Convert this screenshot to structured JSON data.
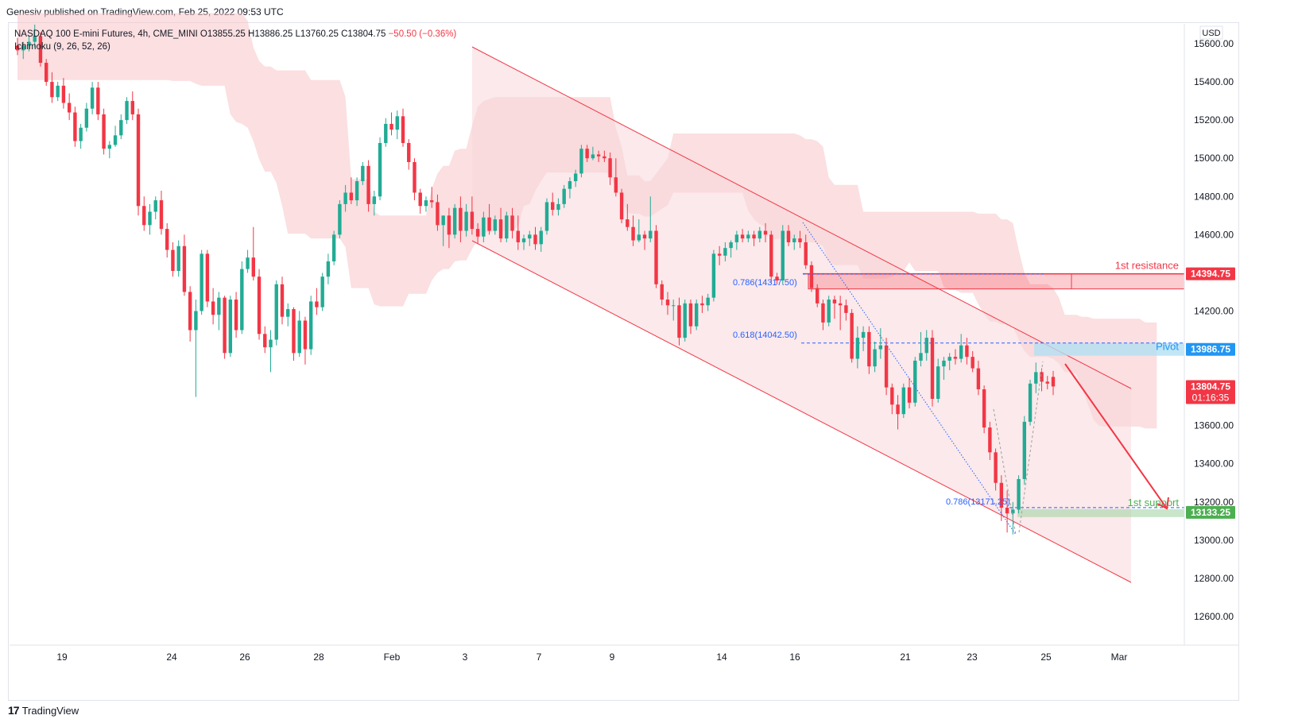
{
  "header": {
    "publisher_line": "Genesiv published on TradingView.com, Feb 25, 2022 09:53 UTC"
  },
  "legend": {
    "symbol": "NASDAQ 100 E-mini Futures, 4h, CME_MINI",
    "open": "O13855.25",
    "high": "H13886.25",
    "low": "L13760.25",
    "close": "C13804.75",
    "change": "−50.50 (−0.36%)",
    "indicator": "Ichimoku (9, 26, 52, 26)"
  },
  "footer": {
    "logo_glyph": "17",
    "brand": "TradingView"
  },
  "colors": {
    "up": "#22ab94",
    "down": "#f23645",
    "cloud": "#f7c5c8",
    "channel": "#f23645",
    "fib": "#2962ff",
    "pivot": "#2196f3",
    "support": "#4caf50"
  },
  "chart_data": {
    "type": "candlestick",
    "currency": "USD",
    "ylim": [
      12400,
      15750
    ],
    "y_ticks": [
      12600,
      12800,
      13000,
      13200,
      13400,
      13600,
      13800,
      14000,
      14200,
      14400,
      14600,
      14800,
      15000,
      15200,
      15400,
      15600
    ],
    "x_ticks": [
      "19",
      "24",
      "26",
      "28",
      "Feb",
      "3",
      "7",
      "9",
      "14",
      "16",
      "21",
      "23",
      "25",
      "Mar"
    ],
    "candles": [
      [
        15590,
        15630,
        15540,
        15565
      ],
      [
        15565,
        15610,
        15520,
        15590
      ],
      [
        15590,
        15640,
        15560,
        15610
      ],
      [
        15610,
        15700,
        15580,
        15640
      ],
      [
        15640,
        15660,
        15480,
        15500
      ],
      [
        15500,
        15520,
        15380,
        15400
      ],
      [
        15400,
        15450,
        15290,
        15320
      ],
      [
        15320,
        15400,
        15300,
        15380
      ],
      [
        15380,
        15420,
        15260,
        15290
      ],
      [
        15290,
        15340,
        15200,
        15240
      ],
      [
        15240,
        15270,
        15060,
        15090
      ],
      [
        15090,
        15180,
        15050,
        15160
      ],
      [
        15160,
        15290,
        15140,
        15260
      ],
      [
        15260,
        15400,
        15230,
        15370
      ],
      [
        15370,
        15400,
        15200,
        15230
      ],
      [
        15230,
        15260,
        15020,
        15050
      ],
      [
        15050,
        15090,
        15000,
        15070
      ],
      [
        15070,
        15170,
        15060,
        15120
      ],
      [
        15120,
        15230,
        15100,
        15200
      ],
      [
        15200,
        15320,
        15180,
        15300
      ],
      [
        15300,
        15350,
        15200,
        15230
      ],
      [
        15230,
        15260,
        14700,
        14750
      ],
      [
        14750,
        14800,
        14620,
        14650
      ],
      [
        14650,
        14760,
        14600,
        14720
      ],
      [
        14720,
        14800,
        14680,
        14780
      ],
      [
        14780,
        14830,
        14600,
        14630
      ],
      [
        14630,
        14660,
        14480,
        14520
      ],
      [
        14520,
        14560,
        14380,
        14410
      ],
      [
        14410,
        14570,
        14380,
        14540
      ],
      [
        14540,
        14600,
        14280,
        14300
      ],
      [
        14300,
        14330,
        14040,
        14100
      ],
      [
        14100,
        14260,
        13750,
        14200
      ],
      [
        14200,
        14520,
        14180,
        14500
      ],
      [
        14500,
        14520,
        14220,
        14250
      ],
      [
        14250,
        14320,
        14130,
        14180
      ],
      [
        14180,
        14300,
        14100,
        14270
      ],
      [
        14270,
        14280,
        13950,
        13980
      ],
      [
        13980,
        14280,
        13960,
        14260
      ],
      [
        14260,
        14300,
        14060,
        14100
      ],
      [
        14100,
        14460,
        14080,
        14420
      ],
      [
        14420,
        14520,
        14400,
        14480
      ],
      [
        14480,
        14640,
        14360,
        14380
      ],
      [
        14380,
        14420,
        14050,
        14080
      ],
      [
        14080,
        14120,
        13980,
        14010
      ],
      [
        14010,
        14100,
        13880,
        14050
      ],
      [
        14050,
        14360,
        14020,
        14340
      ],
      [
        14340,
        14380,
        14130,
        14170
      ],
      [
        14170,
        14240,
        14120,
        14210
      ],
      [
        14210,
        14220,
        13940,
        13980
      ],
      [
        13980,
        14200,
        13960,
        14150
      ],
      [
        14150,
        14170,
        13920,
        14000
      ],
      [
        14000,
        14280,
        13970,
        14250
      ],
      [
        14250,
        14320,
        14180,
        14220
      ],
      [
        14220,
        14400,
        14200,
        14380
      ],
      [
        14380,
        14500,
        14340,
        14460
      ],
      [
        14460,
        14620,
        14440,
        14600
      ],
      [
        14600,
        14780,
        14580,
        14760
      ],
      [
        14760,
        14860,
        14720,
        14820
      ],
      [
        14820,
        14900,
        14760,
        14780
      ],
      [
        14780,
        14900,
        14750,
        14880
      ],
      [
        14880,
        14980,
        14860,
        14960
      ],
      [
        14960,
        14990,
        14720,
        14760
      ],
      [
        14760,
        14830,
        14700,
        14800
      ],
      [
        14800,
        15110,
        14780,
        15080
      ],
      [
        15080,
        15210,
        15060,
        15180
      ],
      [
        15180,
        15240,
        15120,
        15150
      ],
      [
        15150,
        15250,
        15100,
        15220
      ],
      [
        15220,
        15260,
        15060,
        15080
      ],
      [
        15080,
        15100,
        14940,
        14980
      ],
      [
        14980,
        15000,
        14780,
        14820
      ],
      [
        14820,
        14840,
        14710,
        14750
      ],
      [
        14750,
        14800,
        14720,
        14780
      ],
      [
        14780,
        14850,
        14740,
        14770
      ],
      [
        14770,
        14810,
        14620,
        14650
      ],
      [
        14650,
        14700,
        14540,
        14700
      ],
      [
        14700,
        14740,
        14530,
        14600
      ],
      [
        14600,
        14760,
        14580,
        14740
      ],
      [
        14740,
        14800,
        14560,
        14620
      ],
      [
        14620,
        14760,
        14590,
        14720
      ],
      [
        14720,
        14800,
        14600,
        14630
      ],
      [
        14630,
        14660,
        14550,
        14590
      ],
      [
        14590,
        14720,
        14560,
        14690
      ],
      [
        14690,
        14760,
        14600,
        14620
      ],
      [
        14620,
        14700,
        14600,
        14680
      ],
      [
        14680,
        14740,
        14560,
        14580
      ],
      [
        14580,
        14720,
        14560,
        14700
      ],
      [
        14700,
        14740,
        14580,
        14620
      ],
      [
        14620,
        14700,
        14520,
        14560
      ],
      [
        14560,
        14600,
        14520,
        14580
      ],
      [
        14580,
        14620,
        14540,
        14600
      ],
      [
        14600,
        14640,
        14520,
        14550
      ],
      [
        14550,
        14640,
        14510,
        14620
      ],
      [
        14620,
        14790,
        14600,
        14770
      ],
      [
        14770,
        14820,
        14700,
        14730
      ],
      [
        14730,
        14790,
        14700,
        14760
      ],
      [
        14760,
        14860,
        14740,
        14840
      ],
      [
        14840,
        14900,
        14790,
        14880
      ],
      [
        14880,
        14940,
        14850,
        14920
      ],
      [
        14920,
        15070,
        14900,
        15050
      ],
      [
        15050,
        15070,
        14980,
        15000
      ],
      [
        15000,
        15060,
        14990,
        15020
      ],
      [
        15020,
        15040,
        14980,
        15010
      ],
      [
        15010,
        15040,
        14980,
        15000
      ],
      [
        15000,
        15030,
        14860,
        14900
      ],
      [
        14900,
        15000,
        14800,
        14820
      ],
      [
        14820,
        14840,
        14660,
        14680
      ],
      [
        14680,
        14760,
        14620,
        14640
      ],
      [
        14640,
        14700,
        14540,
        14570
      ],
      [
        14570,
        14680,
        14560,
        14600
      ],
      [
        14600,
        14620,
        14520,
        14580
      ],
      [
        14580,
        14800,
        14560,
        14620
      ],
      [
        14620,
        14650,
        14320,
        14340
      ],
      [
        14340,
        14360,
        14230,
        14260
      ],
      [
        14260,
        14300,
        14180,
        14230
      ],
      [
        14230,
        14260,
        14150,
        14230
      ],
      [
        14230,
        14270,
        14020,
        14060
      ],
      [
        14060,
        14260,
        14040,
        14240
      ],
      [
        14240,
        14260,
        14080,
        14120
      ],
      [
        14120,
        14260,
        14100,
        14240
      ],
      [
        14240,
        14280,
        14190,
        14230
      ],
      [
        14230,
        14290,
        14200,
        14270
      ],
      [
        14270,
        14520,
        14250,
        14500
      ],
      [
        14500,
        14540,
        14440,
        14490
      ],
      [
        14490,
        14560,
        14460,
        14530
      ],
      [
        14530,
        14570,
        14480,
        14560
      ],
      [
        14560,
        14620,
        14520,
        14600
      ],
      [
        14600,
        14630,
        14560,
        14580
      ],
      [
        14580,
        14620,
        14560,
        14600
      ],
      [
        14600,
        14620,
        14540,
        14580
      ],
      [
        14580,
        14640,
        14560,
        14620
      ],
      [
        14620,
        14660,
        14560,
        14600
      ],
      [
        14600,
        14620,
        14350,
        14380
      ],
      [
        14380,
        14400,
        14340,
        14360
      ],
      [
        14360,
        14650,
        14340,
        14620
      ],
      [
        14620,
        14650,
        14540,
        14560
      ],
      [
        14560,
        14600,
        14520,
        14580
      ],
      [
        14580,
        14620,
        14530,
        14560
      ],
      [
        14560,
        14600,
        14420,
        14440
      ],
      [
        14440,
        14460,
        14300,
        14320
      ],
      [
        14320,
        14340,
        14220,
        14240
      ],
      [
        14240,
        14260,
        14100,
        14140
      ],
      [
        14140,
        14280,
        14120,
        14260
      ],
      [
        14260,
        14280,
        14160,
        14240
      ],
      [
        14240,
        14280,
        14100,
        14230
      ],
      [
        14230,
        14260,
        14150,
        14190
      ],
      [
        14190,
        14210,
        13930,
        13950
      ],
      [
        13950,
        14120,
        13900,
        14060
      ],
      [
        14060,
        14120,
        13990,
        14090
      ],
      [
        14090,
        14120,
        13870,
        13910
      ],
      [
        13910,
        14040,
        13880,
        14000
      ],
      [
        14000,
        14110,
        13950,
        14020
      ],
      [
        14020,
        14060,
        13760,
        13800
      ],
      [
        13800,
        13820,
        13660,
        13710
      ],
      [
        13710,
        13760,
        13580,
        13660
      ],
      [
        13660,
        13820,
        13640,
        13800
      ],
      [
        13800,
        13850,
        13690,
        13720
      ],
      [
        13720,
        13960,
        13700,
        13940
      ],
      [
        13940,
        14090,
        13910,
        13980
      ],
      [
        13980,
        14100,
        13940,
        14060
      ],
      [
        14060,
        14100,
        13700,
        13740
      ],
      [
        13740,
        13950,
        13720,
        13910
      ],
      [
        13910,
        13960,
        13840,
        13940
      ],
      [
        13940,
        13980,
        13890,
        13960
      ],
      [
        13960,
        14000,
        13920,
        13950
      ],
      [
        13950,
        14080,
        13930,
        14020
      ],
      [
        14020,
        14060,
        13920,
        13960
      ],
      [
        13960,
        13990,
        13880,
        13900
      ],
      [
        13900,
        13940,
        13760,
        13790
      ],
      [
        13790,
        13810,
        13560,
        13590
      ],
      [
        13590,
        13620,
        13420,
        13460
      ],
      [
        13460,
        13480,
        13260,
        13300
      ],
      [
        13300,
        13340,
        13100,
        13170
      ],
      [
        13170,
        13260,
        13040,
        13140
      ],
      [
        13140,
        13200,
        13030,
        13160
      ],
      [
        13160,
        13340,
        13140,
        13320
      ],
      [
        13320,
        13650,
        13290,
        13620
      ],
      [
        13620,
        13840,
        13600,
        13820
      ],
      [
        13820,
        13930,
        13770,
        13880
      ],
      [
        13880,
        13900,
        13780,
        13830
      ],
      [
        13830,
        13860,
        13790,
        13820
      ],
      [
        13855,
        13886,
        13760,
        13805
      ]
    ],
    "levels": [
      {
        "label": "1st resistance",
        "value": 14394.75
      },
      {
        "label": "Pivot",
        "value": 13986.75
      },
      {
        "label": "1st support",
        "value": 13133.25
      }
    ],
    "fib_labels": [
      {
        "label": "0.786(14317.50)",
        "value": 14317.5
      },
      {
        "label": "0.618(14042.50)",
        "value": 14042.5
      },
      {
        "label": "0.786(13171.25)",
        "value": 13171.25
      }
    ],
    "last_price": {
      "value": 13804.75,
      "price_label": "13804.75",
      "countdown": "01:16:35"
    },
    "price_tags": [
      "14394.75",
      "13986.75",
      "13133.25"
    ]
  }
}
